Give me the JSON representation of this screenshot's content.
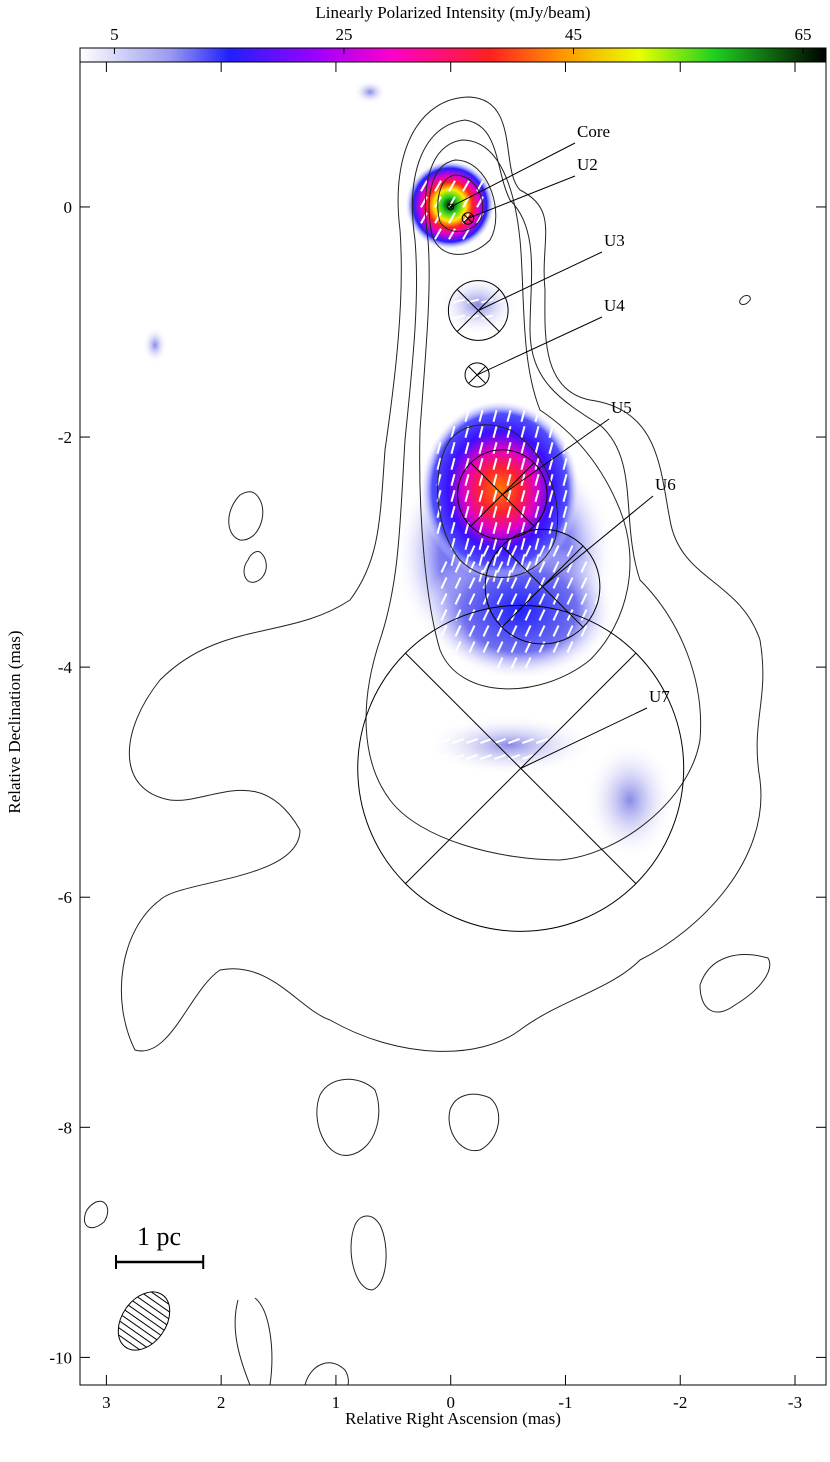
{
  "chart_data": {
    "type": "component-map",
    "x_label": "Relative Right Ascension (mas)",
    "y_label": "Relative Declination (mas)",
    "xlim": [
      3.23,
      -3.27
    ],
    "ylim": [
      1.26,
      -10.24
    ],
    "xticks": [
      3,
      2,
      1,
      0,
      -1,
      -2,
      -3
    ],
    "yticks": [
      0,
      -2,
      -4,
      -6,
      -8,
      -10
    ],
    "colorbar": {
      "label": "Linearly Polarized Intensity (mJy/beam)",
      "lim": [
        2,
        67
      ],
      "ticks": [
        5,
        25,
        45,
        65
      ]
    },
    "scale_bar": {
      "label": "1 pc",
      "length": 0.76
    },
    "components": [
      {
        "name": "Core",
        "x": 0,
        "y": 0,
        "size": 0.05
      },
      {
        "name": "U2",
        "x": -0.15,
        "y": -0.1,
        "size": 0.1
      },
      {
        "name": "U3",
        "x": -0.24,
        "y": -0.9,
        "size": 0.52
      },
      {
        "name": "U4",
        "x": -0.23,
        "y": -1.46,
        "size": 0.21
      },
      {
        "name": "U5",
        "x": -0.45,
        "y": -2.5,
        "size": 0.78
      },
      {
        "name": "U6",
        "x": -0.8,
        "y": -3.3,
        "size": 1.0
      },
      {
        "name": "U7",
        "x": -0.61,
        "y": -4.88,
        "size": 2.84
      }
    ]
  }
}
